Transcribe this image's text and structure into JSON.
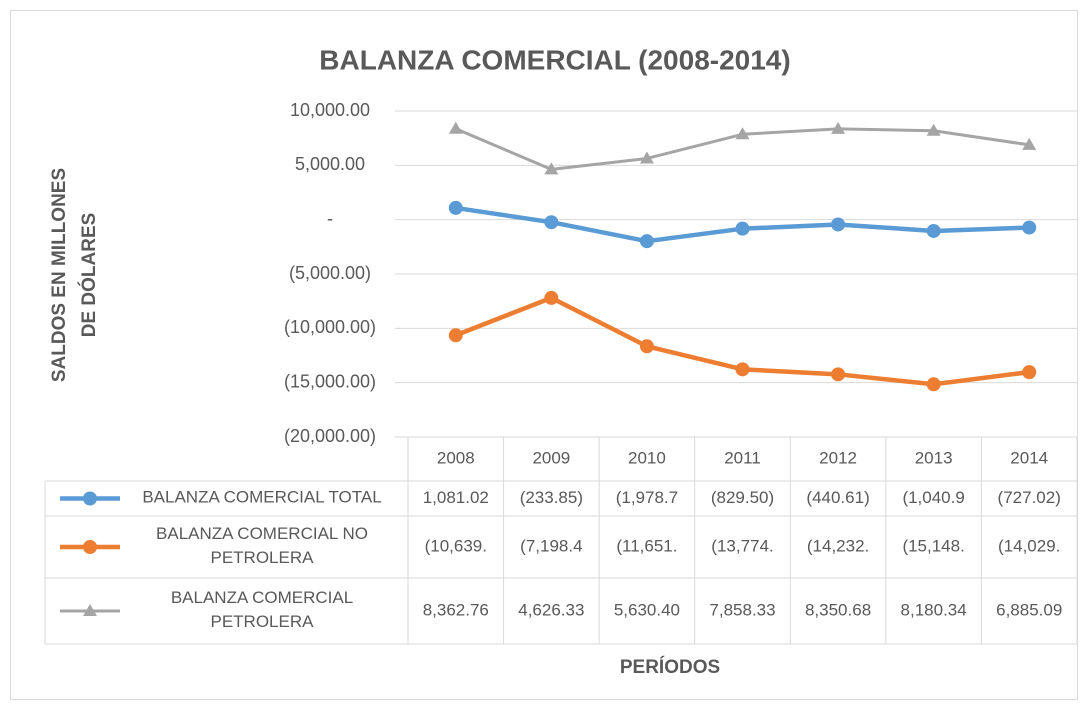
{
  "chart_data": {
    "type": "line",
    "title": "BALANZA COMERCIAL (2008-2014)",
    "y_axis_label": "SALDOS EN MILLONES DE DÓLARES",
    "x_axis_label": "PERÍODOS",
    "categories": [
      "2008",
      "2009",
      "2010",
      "2011",
      "2012",
      "2013",
      "2014"
    ],
    "ylim": [
      -20000,
      10000
    ],
    "yticks": [
      {
        "value": -20000,
        "label": "(20,000.00)"
      },
      {
        "value": -15000,
        "label": "(15,000.00)"
      },
      {
        "value": -10000,
        "label": "(10,000.00)"
      },
      {
        "value": -5000,
        "label": "(5,000.00)"
      },
      {
        "value": 0,
        "label": "-"
      },
      {
        "value": 5000,
        "label": "5,000.00"
      },
      {
        "value": 10000,
        "label": "10,000.00"
      }
    ],
    "grid": true,
    "series": [
      {
        "name": "BALANZA COMERCIAL TOTAL",
        "color": "#5b9bd5",
        "marker": "circle",
        "values": [
          1081.02,
          -233.85,
          -1978.7,
          -829.5,
          -440.61,
          -1040.9,
          -727.02
        ],
        "value_labels": [
          "1,081.02",
          "(233.85)",
          "(1,978.7",
          "(829.50)",
          "(440.61)",
          "(1,040.9",
          "(727.02)"
        ]
      },
      {
        "name": "BALANZA COMERCIAL NO PETROLERA",
        "color": "#ed7d31",
        "marker": "circle",
        "values": [
          -10639,
          -7198.4,
          -11651,
          -13774,
          -14232,
          -15148,
          -14029
        ],
        "value_labels": [
          "(10,639.",
          "(7,198.4",
          "(11,651.",
          "(13,774.",
          "(14,232.",
          "(15,148.",
          "(14,029."
        ]
      },
      {
        "name": "BALANZA COMERCIAL PETROLERA",
        "color": "#a5a5a5",
        "marker": "triangle",
        "values": [
          8362.76,
          4626.33,
          5630.4,
          7858.33,
          8350.68,
          8180.34,
          6885.09
        ],
        "value_labels": [
          "8,362.76",
          "4,626.33",
          "5,630.40",
          "7,858.33",
          "8,350.68",
          "8,180.34",
          "6,885.09"
        ]
      }
    ]
  }
}
